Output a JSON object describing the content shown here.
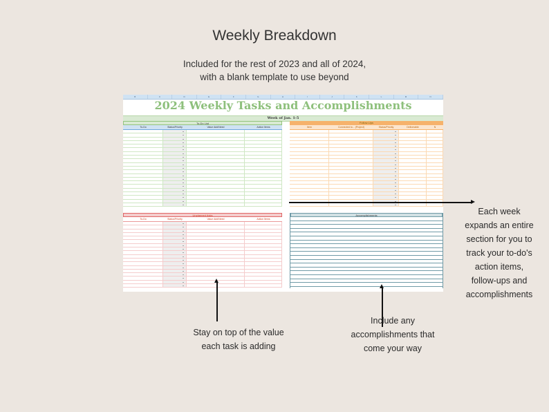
{
  "header": {
    "title": "Weekly Breakdown",
    "subtitle_lines": [
      "Included for the rest of 2023 and all of 2024,",
      "with a blank template to use beyond"
    ]
  },
  "sheet": {
    "column_letters": [
      "B",
      "C",
      "D",
      "E",
      "F",
      "G",
      "H",
      "I",
      "J",
      "K",
      "L",
      "M",
      "N"
    ],
    "title": "2024 Weekly Tasks and Accomplishments",
    "week_label": "Week of Jan. 1-5",
    "todo": {
      "heading": "To-Do List",
      "columns": [
        "To-Do",
        "Status/Priority",
        "Value Add/Need",
        "Action Items"
      ],
      "color_head": "#cfe2f3",
      "color_line": "#d9ead3"
    },
    "followups": {
      "heading": "Follow-Ups",
      "columns": [
        "Item",
        "Connected to... (Project)",
        "Status/Priority",
        "Deliverable",
        "N"
      ],
      "color_head": "#f6b26b",
      "color_line": "#fce5cd"
    },
    "unplanned": {
      "heading": "Unplanned Asks",
      "columns": [
        "To-Do",
        "Status/Priority",
        "Value Add/Need",
        "Action Items"
      ],
      "color_head": "#f4cccc",
      "color_line": "#f4cccc"
    },
    "accomplishments": {
      "heading": "Accomplishments",
      "color_head": "#d0e0e3",
      "color_line": "#6f9aa6"
    }
  },
  "annotations": {
    "right_note": [
      "Each week",
      "expands an entire",
      "section for you to",
      "track your to-do's",
      "action items,",
      "follow-ups and",
      "accomplishments"
    ],
    "left_note": [
      "Stay on top of the value",
      "each task is adding"
    ],
    "center_note": [
      "Include any",
      "accomplishments that",
      "come your way"
    ]
  }
}
